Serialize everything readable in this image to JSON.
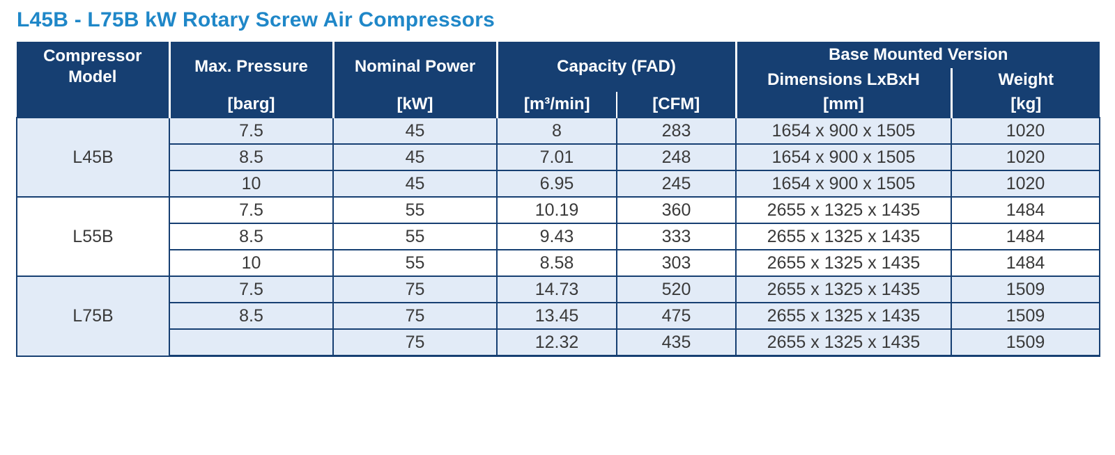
{
  "title": "L45B - L75B kW Rotary Screw Air Compressors",
  "colors": {
    "title": "#1f87c8",
    "header_bg": "#163f72",
    "row_shade": "#e2ebf7",
    "grid": "#163f72"
  },
  "headers": {
    "model": "Compressor Model",
    "pressure": "Max. Pressure",
    "pressure_unit": "[barg]",
    "power": "Nominal Power",
    "power_unit": "[kW]",
    "capacity": "Capacity (FAD)",
    "capacity_unit_metric": "[m³/min]",
    "capacity_unit_imperial": "[CFM]",
    "base_mounted": "Base Mounted Version",
    "dimensions": "Dimensions LxBxH",
    "dimensions_unit": "[mm]",
    "weight": "Weight",
    "weight_unit": "[kg]"
  },
  "groups": [
    {
      "model": "L45B",
      "rows": [
        {
          "pressure": "7.5",
          "power": "45",
          "m3min": "8",
          "cfm": "283",
          "dimensions": "1654 x 900 x 1505",
          "weight": "1020"
        },
        {
          "pressure": "8.5",
          "power": "45",
          "m3min": "7.01",
          "cfm": "248",
          "dimensions": "1654 x 900 x 1505",
          "weight": "1020"
        },
        {
          "pressure": "10",
          "power": "45",
          "m3min": "6.95",
          "cfm": "245",
          "dimensions": "1654 x 900 x 1505",
          "weight": "1020"
        }
      ]
    },
    {
      "model": "L55B",
      "rows": [
        {
          "pressure": "7.5",
          "power": "55",
          "m3min": "10.19",
          "cfm": "360",
          "dimensions": "2655 x 1325 x 1435",
          "weight": "1484"
        },
        {
          "pressure": "8.5",
          "power": "55",
          "m3min": "9.43",
          "cfm": "333",
          "dimensions": "2655 x 1325 x 1435",
          "weight": "1484"
        },
        {
          "pressure": "10",
          "power": "55",
          "m3min": "8.58",
          "cfm": "303",
          "dimensions": "2655 x 1325 x 1435",
          "weight": "1484"
        }
      ]
    },
    {
      "model": "L75B",
      "rows": [
        {
          "pressure": "7.5",
          "power": "75",
          "m3min": "14.73",
          "cfm": "520",
          "dimensions": "2655 x 1325 x 1435",
          "weight": "1509"
        },
        {
          "pressure": "8.5",
          "power": "75",
          "m3min": "13.45",
          "cfm": "475",
          "dimensions": "2655 x 1325 x 1435",
          "weight": "1509"
        },
        {
          "pressure": "",
          "power": "75",
          "m3min": "12.32",
          "cfm": "435",
          "dimensions": "2655 x 1325 x 1435",
          "weight": "1509"
        }
      ]
    }
  ]
}
